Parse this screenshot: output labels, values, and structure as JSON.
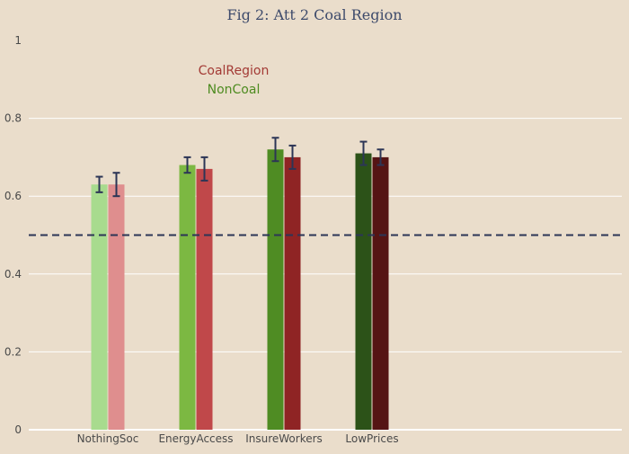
{
  "chart_data": {
    "type": "bar",
    "title": "Fig 2: Att 2 Coal Region",
    "xlabel": "",
    "ylabel": "",
    "ylim": [
      0,
      1
    ],
    "yticks": [
      0,
      0.2,
      0.4,
      0.6,
      0.8,
      1
    ],
    "ytick_labels": [
      "0",
      "0.2",
      "0.4",
      "0.6",
      "0.8",
      "1"
    ],
    "categories": [
      "NothingSoc",
      "EnergyAccess",
      "InsureWorkers",
      "LowPrices"
    ],
    "reference_line": {
      "y": 0.5,
      "style": "dashed",
      "color": "#2c3556"
    },
    "grid": true,
    "legend_placement": "top-left",
    "legend": [
      {
        "label": "CoalRegion",
        "color": "#a33a35"
      },
      {
        "label": "NonCoal",
        "color": "#4e8b20"
      }
    ],
    "series": [
      {
        "name": "NonCoal",
        "values": [
          0.63,
          0.68,
          0.72,
          0.71
        ],
        "errors": [
          0.02,
          0.02,
          0.03,
          0.03
        ],
        "colors": [
          "#a8db8e",
          "#7cb842",
          "#4f8c23",
          "#2c5218"
        ]
      },
      {
        "name": "CoalRegion",
        "values": [
          0.63,
          0.67,
          0.7,
          0.7
        ],
        "errors": [
          0.03,
          0.03,
          0.03,
          0.02
        ],
        "colors": [
          "#df8e8e",
          "#c0484a",
          "#8f2424",
          "#551414"
        ]
      }
    ],
    "colors": {
      "background": "#eaddcb",
      "grid": "#ffffff",
      "axis_text": "#4a4a4a",
      "title_text": "#3d4a6b",
      "error_bar": "#2c3556"
    }
  }
}
